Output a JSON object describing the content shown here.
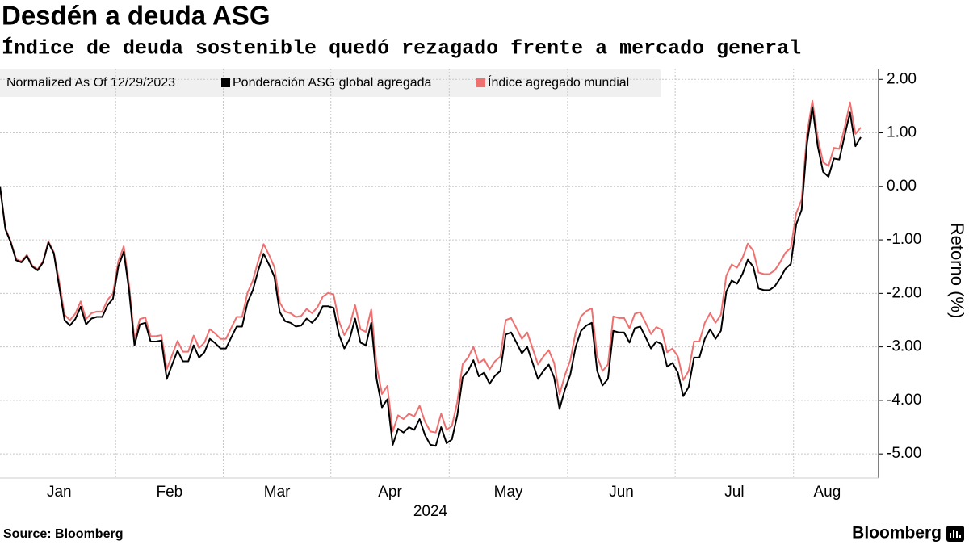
{
  "chart_data": {
    "type": "line",
    "title": "Desdén a deuda ASG",
    "subtitle": "Índice de deuda sostenible quedó rezagado frente a mercado general",
    "legend_note": "Normalized As Of 12/29/2023",
    "ylabel": "Retorno (%)",
    "x_axis_label": "2024",
    "source": "Source: Bloomberg",
    "brand": "Bloomberg",
    "ylim": [
      -5.45,
      2.2
    ],
    "yticks": [
      {
        "value": 2,
        "label": "2.00"
      },
      {
        "value": 1,
        "label": "1.00"
      },
      {
        "value": 0,
        "label": "0.00"
      },
      {
        "value": -1,
        "label": "-1.00"
      },
      {
        "value": -2,
        "label": "-2.00"
      },
      {
        "value": -3,
        "label": "-3.00"
      },
      {
        "value": -4,
        "label": "-4.00"
      },
      {
        "value": -5,
        "label": "-5.00"
      }
    ],
    "grid": true,
    "legend": "top-left",
    "categories": [
      null,
      "Jan",
      null,
      null,
      null,
      null,
      null,
      null,
      null,
      null,
      null,
      null,
      null,
      null,
      null,
      null,
      null,
      null,
      null,
      null,
      null,
      null,
      "Feb",
      null,
      null,
      null,
      null,
      null,
      null,
      null,
      null,
      null,
      null,
      null,
      null,
      null,
      null,
      null,
      null,
      null,
      null,
      null,
      "Mar",
      null,
      null,
      null,
      null,
      null,
      null,
      null,
      null,
      null,
      null,
      null,
      null,
      null,
      null,
      null,
      null,
      null,
      null,
      null,
      "Apr",
      null,
      null,
      null,
      null,
      null,
      null,
      null,
      null,
      null,
      null,
      null,
      null,
      null,
      null,
      null,
      null,
      null,
      null,
      null,
      null,
      null,
      "May",
      null,
      null,
      null,
      null,
      null,
      null,
      null,
      null,
      null,
      null,
      null,
      null,
      null,
      null,
      null,
      null,
      null,
      null,
      null,
      null,
      null,
      "Jun",
      null,
      null,
      null,
      null,
      null,
      null,
      null,
      null,
      null,
      null,
      null,
      null,
      null,
      null,
      null,
      null,
      null,
      null,
      null,
      "Jul",
      null,
      null,
      null,
      null,
      null,
      null,
      null,
      null,
      null,
      null,
      null,
      null,
      null,
      null,
      null,
      null,
      null,
      null,
      null,
      null,
      null,
      "Aug",
      null,
      null,
      null,
      null,
      null,
      null,
      null,
      null,
      null,
      null,
      null,
      null
    ],
    "series": [
      {
        "name": "Índice agregado mundial",
        "color": "#f07070",
        "values": [
          0,
          -0.78,
          -1.03,
          -1.36,
          -1.4,
          -1.28,
          -1.48,
          -1.55,
          -1.4,
          -1.03,
          -1.23,
          -1.77,
          -2.4,
          -2.5,
          -2.38,
          -2.15,
          -2.48,
          -2.37,
          -2.34,
          -2.34,
          -2.12,
          -2.0,
          -1.4,
          -1.12,
          -1.85,
          -2.87,
          -2.48,
          -2.45,
          -2.8,
          -2.8,
          -2.78,
          -3.42,
          -3.15,
          -2.89,
          -3.09,
          -3.09,
          -2.79,
          -3.02,
          -2.92,
          -2.67,
          -2.75,
          -2.85,
          -2.85,
          -2.64,
          -2.44,
          -2.44,
          -1.99,
          -1.76,
          -1.39,
          -1.08,
          -1.28,
          -1.51,
          -2.17,
          -2.34,
          -2.37,
          -2.44,
          -2.42,
          -2.29,
          -2.37,
          -2.26,
          -2.06,
          -1.99,
          -2.02,
          -2.52,
          -2.78,
          -2.6,
          -2.22,
          -2.67,
          -2.72,
          -2.3,
          -3.35,
          -3.88,
          -3.73,
          -4.58,
          -4.28,
          -4.35,
          -4.25,
          -4.3,
          -4.1,
          -4.4,
          -4.58,
          -4.6,
          -4.25,
          -4.55,
          -4.48,
          -4.03,
          -3.32,
          -3.2,
          -3.0,
          -3.3,
          -3.23,
          -3.42,
          -3.27,
          -3.18,
          -2.5,
          -2.46,
          -2.65,
          -2.85,
          -2.73,
          -3.03,
          -3.33,
          -3.18,
          -3.06,
          -3.3,
          -3.89,
          -3.53,
          -3.25,
          -2.73,
          -2.43,
          -2.33,
          -2.28,
          -3.18,
          -3.45,
          -3.33,
          -2.43,
          -2.46,
          -2.46,
          -2.65,
          -2.38,
          -2.35,
          -2.55,
          -2.76,
          -2.63,
          -2.68,
          -3.1,
          -3.03,
          -3.18,
          -3.62,
          -3.45,
          -2.9,
          -2.9,
          -2.55,
          -2.37,
          -2.55,
          -2.4,
          -1.67,
          -1.46,
          -1.52,
          -1.34,
          -1.07,
          -1.2,
          -1.61,
          -1.64,
          -1.64,
          -1.57,
          -1.42,
          -1.24,
          -1.15,
          -0.5,
          -0.25,
          0.98,
          1.6,
          0.9,
          0.45,
          0.38,
          0.72,
          0.7,
          1.1,
          1.57,
          0.98,
          1.1
        ]
      },
      {
        "name": "Ponderación ASG global agregada",
        "color": "#000000",
        "values": [
          0,
          -0.8,
          -1.05,
          -1.38,
          -1.42,
          -1.3,
          -1.5,
          -1.57,
          -1.42,
          -1.05,
          -1.25,
          -1.87,
          -2.5,
          -2.6,
          -2.48,
          -2.25,
          -2.58,
          -2.47,
          -2.44,
          -2.44,
          -2.22,
          -2.1,
          -1.5,
          -1.22,
          -1.95,
          -2.97,
          -2.58,
          -2.55,
          -2.9,
          -2.9,
          -2.88,
          -3.6,
          -3.33,
          -3.07,
          -3.27,
          -3.27,
          -2.97,
          -3.2,
          -3.1,
          -2.85,
          -2.93,
          -3.03,
          -3.03,
          -2.82,
          -2.62,
          -2.62,
          -2.17,
          -1.94,
          -1.57,
          -1.26,
          -1.46,
          -1.69,
          -2.35,
          -2.52,
          -2.55,
          -2.62,
          -2.6,
          -2.47,
          -2.55,
          -2.44,
          -2.24,
          -2.24,
          -2.27,
          -2.77,
          -3.03,
          -2.85,
          -2.47,
          -2.92,
          -2.97,
          -2.55,
          -3.6,
          -4.13,
          -3.98,
          -4.83,
          -4.53,
          -4.6,
          -4.5,
          -4.55,
          -4.35,
          -4.65,
          -4.83,
          -4.85,
          -4.5,
          -4.8,
          -4.73,
          -4.28,
          -3.57,
          -3.45,
          -3.25,
          -3.55,
          -3.48,
          -3.69,
          -3.54,
          -3.45,
          -2.77,
          -2.73,
          -2.92,
          -3.12,
          -3.0,
          -3.3,
          -3.6,
          -3.45,
          -3.33,
          -3.57,
          -4.16,
          -3.8,
          -3.52,
          -3.0,
          -2.7,
          -2.6,
          -2.55,
          -3.45,
          -3.72,
          -3.6,
          -2.7,
          -2.73,
          -2.73,
          -2.92,
          -2.65,
          -2.62,
          -2.82,
          -3.03,
          -2.9,
          -2.95,
          -3.37,
          -3.3,
          -3.48,
          -3.92,
          -3.75,
          -3.2,
          -3.2,
          -2.85,
          -2.67,
          -2.85,
          -2.7,
          -1.97,
          -1.76,
          -1.82,
          -1.64,
          -1.37,
          -1.5,
          -1.91,
          -1.94,
          -1.94,
          -1.87,
          -1.72,
          -1.54,
          -1.45,
          -0.71,
          -0.44,
          0.8,
          1.48,
          0.75,
          0.27,
          0.18,
          0.52,
          0.5,
          0.95,
          1.38,
          0.75,
          0.92
        ]
      }
    ]
  }
}
